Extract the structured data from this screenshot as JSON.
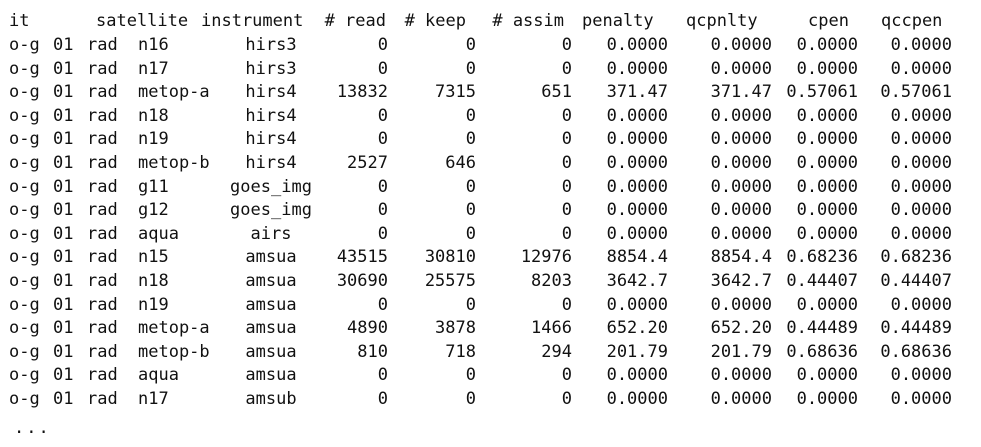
{
  "header": {
    "it": "it",
    "satellite": "satellite",
    "instrument": "instrument",
    "read": "# read",
    "keep": "# keep",
    "assim": "# assim",
    "penalty": "penalty",
    "qcpnlty": "qcpnlty",
    "cpen": "cpen",
    "qccpen": "qccpen"
  },
  "rows": [
    {
      "it": "o-g",
      "iter": "01",
      "type": "rad",
      "satellite": "n16",
      "instrument": "hirs3",
      "read": "0",
      "keep": "0",
      "assim": "0",
      "penalty": "0.0000",
      "qcpnlty": "0.0000",
      "cpen": "0.0000",
      "qccpen": "0.0000"
    },
    {
      "it": "o-g",
      "iter": "01",
      "type": "rad",
      "satellite": "n17",
      "instrument": "hirs3",
      "read": "0",
      "keep": "0",
      "assim": "0",
      "penalty": "0.0000",
      "qcpnlty": "0.0000",
      "cpen": "0.0000",
      "qccpen": "0.0000"
    },
    {
      "it": "o-g",
      "iter": "01",
      "type": "rad",
      "satellite": "metop-a",
      "instrument": "hirs4",
      "read": "13832",
      "keep": "7315",
      "assim": "651",
      "penalty": "371.47",
      "qcpnlty": "371.47",
      "cpen": "0.57061",
      "qccpen": "0.57061"
    },
    {
      "it": "o-g",
      "iter": "01",
      "type": "rad",
      "satellite": "n18",
      "instrument": "hirs4",
      "read": "0",
      "keep": "0",
      "assim": "0",
      "penalty": "0.0000",
      "qcpnlty": "0.0000",
      "cpen": "0.0000",
      "qccpen": "0.0000"
    },
    {
      "it": "o-g",
      "iter": "01",
      "type": "rad",
      "satellite": "n19",
      "instrument": "hirs4",
      "read": "0",
      "keep": "0",
      "assim": "0",
      "penalty": "0.0000",
      "qcpnlty": "0.0000",
      "cpen": "0.0000",
      "qccpen": "0.0000"
    },
    {
      "it": "o-g",
      "iter": "01",
      "type": "rad",
      "satellite": "metop-b",
      "instrument": "hirs4",
      "read": "2527",
      "keep": "646",
      "assim": "0",
      "penalty": "0.0000",
      "qcpnlty": "0.0000",
      "cpen": "0.0000",
      "qccpen": "0.0000"
    },
    {
      "it": "o-g",
      "iter": "01",
      "type": "rad",
      "satellite": "g11",
      "instrument": "goes_img",
      "read": "0",
      "keep": "0",
      "assim": "0",
      "penalty": "0.0000",
      "qcpnlty": "0.0000",
      "cpen": "0.0000",
      "qccpen": "0.0000"
    },
    {
      "it": "o-g",
      "iter": "01",
      "type": "rad",
      "satellite": "g12",
      "instrument": "goes_img",
      "read": "0",
      "keep": "0",
      "assim": "0",
      "penalty": "0.0000",
      "qcpnlty": "0.0000",
      "cpen": "0.0000",
      "qccpen": "0.0000"
    },
    {
      "it": "o-g",
      "iter": "01",
      "type": "rad",
      "satellite": "aqua",
      "instrument": "airs",
      "read": "0",
      "keep": "0",
      "assim": "0",
      "penalty": "0.0000",
      "qcpnlty": "0.0000",
      "cpen": "0.0000",
      "qccpen": "0.0000"
    },
    {
      "it": "o-g",
      "iter": "01",
      "type": "rad",
      "satellite": "n15",
      "instrument": "amsua",
      "read": "43515",
      "keep": "30810",
      "assim": "12976",
      "penalty": "8854.4",
      "qcpnlty": "8854.4",
      "cpen": "0.68236",
      "qccpen": "0.68236"
    },
    {
      "it": "o-g",
      "iter": "01",
      "type": "rad",
      "satellite": "n18",
      "instrument": "amsua",
      "read": "30690",
      "keep": "25575",
      "assim": "8203",
      "penalty": "3642.7",
      "qcpnlty": "3642.7",
      "cpen": "0.44407",
      "qccpen": "0.44407"
    },
    {
      "it": "o-g",
      "iter": "01",
      "type": "rad",
      "satellite": "n19",
      "instrument": "amsua",
      "read": "0",
      "keep": "0",
      "assim": "0",
      "penalty": "0.0000",
      "qcpnlty": "0.0000",
      "cpen": "0.0000",
      "qccpen": "0.0000"
    },
    {
      "it": "o-g",
      "iter": "01",
      "type": "rad",
      "satellite": "metop-a",
      "instrument": "amsua",
      "read": "4890",
      "keep": "3878",
      "assim": "1466",
      "penalty": "652.20",
      "qcpnlty": "652.20",
      "cpen": "0.44489",
      "qccpen": "0.44489"
    },
    {
      "it": "o-g",
      "iter": "01",
      "type": "rad",
      "satellite": "metop-b",
      "instrument": "amsua",
      "read": "810",
      "keep": "718",
      "assim": "294",
      "penalty": "201.79",
      "qcpnlty": "201.79",
      "cpen": "0.68636",
      "qccpen": "0.68636"
    },
    {
      "it": "o-g",
      "iter": "01",
      "type": "rad",
      "satellite": "aqua",
      "instrument": "amsua",
      "read": "0",
      "keep": "0",
      "assim": "0",
      "penalty": "0.0000",
      "qcpnlty": "0.0000",
      "cpen": "0.0000",
      "qccpen": "0.0000"
    },
    {
      "it": "o-g",
      "iter": "01",
      "type": "rad",
      "satellite": "n17",
      "instrument": "amsub",
      "read": "0",
      "keep": "0",
      "assim": "0",
      "penalty": "0.0000",
      "qcpnlty": "0.0000",
      "cpen": "0.0000",
      "qccpen": "0.0000"
    }
  ],
  "ellipsis": "..."
}
